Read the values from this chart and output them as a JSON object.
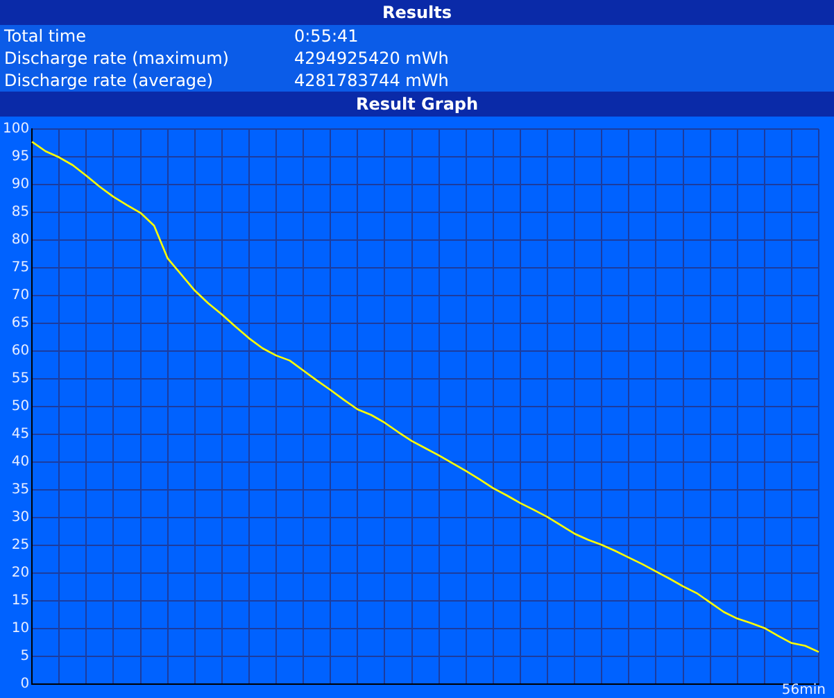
{
  "chart_data": {
    "type": "line",
    "title": "Results",
    "subtitle": "Result Graph",
    "annotations": [
      "Total time",
      "0:55:41",
      "Discharge rate (maximum)",
      "4294925420 mWh",
      "Discharge rate (average)",
      "4281783744 mWh",
      "56min"
    ],
    "categories": [
      null,
      null,
      null,
      null,
      null,
      null,
      null,
      null,
      null,
      null,
      null,
      null,
      null,
      null,
      null,
      null,
      null,
      null,
      null,
      null,
      null,
      null,
      null,
      null,
      null,
      null,
      null,
      null,
      null,
      null,
      null,
      null,
      null,
      null,
      null,
      null,
      null,
      null,
      null,
      null,
      null,
      null,
      null,
      null,
      null,
      null,
      null,
      null,
      null,
      null,
      null,
      null,
      null,
      null,
      null,
      null,
      null,
      null,
      null
    ],
    "series": [
      {
        "color": "#ffff00",
        "values": [
          97.7,
          96.0,
          94.9,
          93.5,
          91.6,
          89.6,
          87.8,
          86.3,
          84.9,
          82.6,
          76.7,
          73.8,
          70.9,
          68.6,
          66.6,
          64.4,
          62.3,
          60.5,
          59.2,
          58.3,
          56.5,
          54.7,
          53.0,
          51.2,
          49.5,
          48.5,
          47.1,
          45.4,
          43.8,
          42.5,
          41.2,
          39.8,
          38.4,
          36.9,
          35.3,
          34.0,
          32.6,
          31.4,
          30.1,
          28.6,
          27.1,
          26.0,
          25.1,
          24.0,
          22.8,
          21.6,
          20.3,
          19.0,
          17.6,
          16.4,
          14.7,
          13.0,
          11.8,
          11.0,
          10.1,
          8.7,
          7.4,
          6.9,
          5.8
        ]
      }
    ],
    "ylim": [
      0,
      100
    ],
    "yticks": [
      0,
      5,
      10,
      15,
      20,
      25,
      30,
      35,
      40,
      45,
      50,
      55,
      60,
      65,
      70,
      75,
      80,
      85,
      90,
      95,
      100
    ],
    "grid": true,
    "tick_labels": "y",
    "marker": "none",
    "line_style": "solid"
  }
}
